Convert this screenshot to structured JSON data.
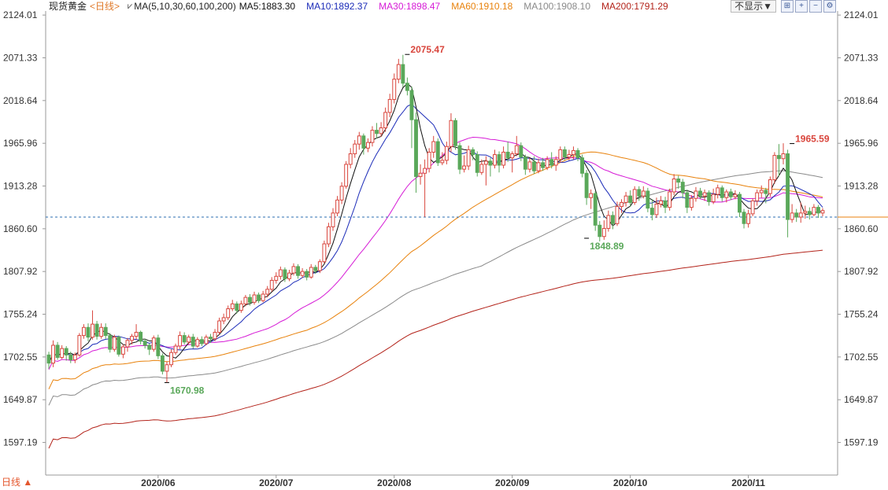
{
  "header": {
    "symbol": "现货黄金",
    "period_label": "<日线>",
    "ma_params": "MA(5,10,30,60,100,200)",
    "ma_values": [
      {
        "text": "MA5:1883.30",
        "color": "#111111"
      },
      {
        "text": "MA10:1892.37",
        "color": "#1b2bb8"
      },
      {
        "text": "MA30:1898.47",
        "color": "#d61bd6"
      },
      {
        "text": "MA60:1910.18",
        "color": "#e8820c"
      },
      {
        "text": "MA100:1908.10",
        "color": "#8a8a8a"
      },
      {
        "text": "MA200:1791.29",
        "color": "#b3231a"
      }
    ],
    "dropdown": "不显示▼",
    "icons": [
      "grid-icon",
      "zoom-in-icon",
      "zoom-out-icon",
      "settings-icon"
    ]
  },
  "footer": {
    "corner_label": "日线 ▲"
  },
  "colors": {
    "up": "#d9463d",
    "down": "#5aa85a",
    "current_line": "#2b6cb0"
  },
  "chart_data": {
    "type": "candlestick",
    "y_ticks": [
      "2124.01",
      "2071.33",
      "2018.64",
      "1965.96",
      "1913.28",
      "1860.60",
      "1807.92",
      "1755.24",
      "1702.55",
      "1649.87",
      "1597.19"
    ],
    "y_tick_values": [
      2124.01,
      2071.33,
      2018.64,
      1965.96,
      1913.28,
      1860.6,
      1807.92,
      1755.24,
      1702.55,
      1649.87,
      1597.19
    ],
    "ylim": [
      1557,
      2129
    ],
    "x_tick_labels": [
      "2020/06",
      "2020/07",
      "2020/08",
      "2020/09",
      "2020/10",
      "2020/11"
    ],
    "x_tick_index": [
      25,
      52,
      79,
      106,
      133,
      160
    ],
    "current_price": 1875,
    "annotations": [
      {
        "text": "2075.47",
        "index": 82,
        "value": 2075.47,
        "color": "#d9463d",
        "side": "above"
      },
      {
        "text": "1670.98",
        "index": 27,
        "value": 1670.98,
        "color": "#5aa85a",
        "side": "below"
      },
      {
        "text": "1848.89",
        "index": 123,
        "value": 1848.89,
        "color": "#5aa85a",
        "side": "below"
      },
      {
        "text": "1965.59",
        "index": 170,
        "value": 1965.59,
        "color": "#d9463d",
        "side": "above"
      }
    ],
    "candles": [
      [
        1705,
        1695,
        1709,
        1688
      ],
      [
        1695,
        1717,
        1723,
        1690
      ],
      [
        1717,
        1702,
        1721,
        1699
      ],
      [
        1702,
        1713,
        1717,
        1700
      ],
      [
        1713,
        1705,
        1716,
        1698
      ],
      [
        1705,
        1699,
        1709,
        1695
      ],
      [
        1699,
        1705,
        1708,
        1695
      ],
      [
        1705,
        1729,
        1732,
        1703
      ],
      [
        1729,
        1739,
        1743,
        1725
      ],
      [
        1739,
        1727,
        1744,
        1722
      ],
      [
        1727,
        1743,
        1760,
        1724
      ],
      [
        1743,
        1728,
        1747,
        1724
      ],
      [
        1728,
        1739,
        1744,
        1725
      ],
      [
        1739,
        1729,
        1744,
        1725
      ],
      [
        1729,
        1712,
        1732,
        1708
      ],
      [
        1712,
        1727,
        1730,
        1709
      ],
      [
        1727,
        1706,
        1729,
        1703
      ],
      [
        1706,
        1715,
        1718,
        1701
      ],
      [
        1715,
        1723,
        1726,
        1709
      ],
      [
        1723,
        1728,
        1731,
        1718
      ],
      [
        1728,
        1733,
        1743,
        1724
      ],
      [
        1733,
        1722,
        1735,
        1718
      ],
      [
        1722,
        1717,
        1725,
        1713
      ],
      [
        1717,
        1712,
        1719,
        1705
      ],
      [
        1712,
        1726,
        1729,
        1709
      ],
      [
        1726,
        1704,
        1730,
        1700
      ],
      [
        1704,
        1685,
        1707,
        1681
      ],
      [
        1685,
        1693,
        1697,
        1671
      ],
      [
        1693,
        1708,
        1712,
        1690
      ],
      [
        1708,
        1716,
        1719,
        1705
      ],
      [
        1716,
        1729,
        1734,
        1712
      ],
      [
        1729,
        1721,
        1733,
        1718
      ],
      [
        1721,
        1727,
        1730,
        1718
      ],
      [
        1727,
        1716,
        1731,
        1713
      ],
      [
        1716,
        1724,
        1727,
        1714
      ],
      [
        1724,
        1719,
        1728,
        1716
      ],
      [
        1719,
        1727,
        1730,
        1717
      ],
      [
        1727,
        1725,
        1731,
        1720
      ],
      [
        1725,
        1733,
        1737,
        1722
      ],
      [
        1733,
        1747,
        1751,
        1730
      ],
      [
        1747,
        1751,
        1756,
        1743
      ],
      [
        1751,
        1762,
        1766,
        1748
      ],
      [
        1762,
        1768,
        1773,
        1759
      ],
      [
        1768,
        1760,
        1771,
        1756
      ],
      [
        1760,
        1768,
        1772,
        1757
      ],
      [
        1768,
        1776,
        1779,
        1765
      ],
      [
        1776,
        1770,
        1780,
        1766
      ],
      [
        1770,
        1779,
        1783,
        1767
      ],
      [
        1779,
        1772,
        1782,
        1769
      ],
      [
        1772,
        1780,
        1784,
        1770
      ],
      [
        1780,
        1786,
        1790,
        1776
      ],
      [
        1786,
        1797,
        1801,
        1783
      ],
      [
        1797,
        1802,
        1807,
        1793
      ],
      [
        1802,
        1810,
        1814,
        1798
      ],
      [
        1810,
        1799,
        1813,
        1795
      ],
      [
        1799,
        1806,
        1810,
        1796
      ],
      [
        1806,
        1814,
        1818,
        1803
      ],
      [
        1814,
        1803,
        1817,
        1799
      ],
      [
        1803,
        1808,
        1812,
        1800
      ],
      [
        1808,
        1801,
        1811,
        1797
      ],
      [
        1801,
        1813,
        1817,
        1799
      ],
      [
        1813,
        1809,
        1816,
        1805
      ],
      [
        1809,
        1820,
        1823,
        1806
      ],
      [
        1820,
        1842,
        1846,
        1818
      ],
      [
        1842,
        1863,
        1868,
        1838
      ],
      [
        1863,
        1880,
        1886,
        1858
      ],
      [
        1880,
        1896,
        1901,
        1876
      ],
      [
        1896,
        1913,
        1918,
        1891
      ],
      [
        1913,
        1940,
        1944,
        1910
      ],
      [
        1940,
        1953,
        1960,
        1935
      ],
      [
        1953,
        1965,
        1970,
        1948
      ],
      [
        1965,
        1975,
        1980,
        1958
      ],
      [
        1975,
        1960,
        1978,
        1952
      ],
      [
        1960,
        1967,
        1972,
        1955
      ],
      [
        1967,
        1982,
        1987,
        1962
      ],
      [
        1982,
        1978,
        1991,
        1972
      ],
      [
        1978,
        1985,
        1992,
        1974
      ],
      [
        1985,
        2004,
        2010,
        1980
      ],
      [
        2004,
        2020,
        2027,
        1998
      ],
      [
        2020,
        2045,
        2052,
        2015
      ],
      [
        2045,
        2063,
        2070,
        2040
      ],
      [
        2063,
        2040,
        2075,
        2035
      ],
      [
        2040,
        2031,
        2047,
        2025
      ],
      [
        2031,
        1995,
        2036,
        1960
      ],
      [
        1995,
        1925,
        2004,
        1905
      ],
      [
        1925,
        1929,
        1940,
        1915
      ],
      [
        1929,
        1935,
        1946,
        1875
      ],
      [
        1935,
        1955,
        1960,
        1930
      ],
      [
        1955,
        1968,
        1975,
        1948
      ],
      [
        1968,
        1942,
        1972,
        1938
      ],
      [
        1942,
        1945,
        1955,
        1939
      ],
      [
        1945,
        1962,
        1968,
        1940
      ],
      [
        1962,
        1994,
        2003,
        1955
      ],
      [
        1994,
        1963,
        1997,
        1958
      ],
      [
        1963,
        1934,
        1967,
        1928
      ],
      [
        1934,
        1938,
        1951,
        1930
      ],
      [
        1938,
        1958,
        1963,
        1933
      ],
      [
        1958,
        1952,
        1961,
        1945
      ],
      [
        1952,
        1930,
        1956,
        1925
      ],
      [
        1930,
        1940,
        1946,
        1927
      ],
      [
        1940,
        1944,
        1950,
        1914
      ],
      [
        1944,
        1939,
        1948,
        1925
      ],
      [
        1939,
        1952,
        1958,
        1935
      ],
      [
        1952,
        1939,
        1956,
        1930
      ],
      [
        1939,
        1955,
        1962,
        1935
      ],
      [
        1955,
        1948,
        1968,
        1943
      ],
      [
        1948,
        1953,
        1956,
        1930
      ],
      [
        1953,
        1963,
        1975,
        1950
      ],
      [
        1963,
        1949,
        1967,
        1944
      ],
      [
        1949,
        1934,
        1952,
        1927
      ],
      [
        1934,
        1943,
        1948,
        1930
      ],
      [
        1943,
        1932,
        1950,
        1928
      ],
      [
        1932,
        1942,
        1947,
        1929
      ],
      [
        1942,
        1936,
        1948,
        1932
      ],
      [
        1936,
        1946,
        1950,
        1933
      ],
      [
        1946,
        1939,
        1955,
        1935
      ],
      [
        1939,
        1946,
        1950,
        1932
      ],
      [
        1946,
        1958,
        1962,
        1942
      ],
      [
        1958,
        1949,
        1962,
        1945
      ],
      [
        1949,
        1952,
        1958,
        1945
      ],
      [
        1952,
        1957,
        1962,
        1946
      ],
      [
        1957,
        1948,
        1960,
        1944
      ],
      [
        1948,
        1929,
        1952,
        1924
      ],
      [
        1929,
        1899,
        1933,
        1890
      ],
      [
        1899,
        1904,
        1909,
        1885
      ],
      [
        1904,
        1865,
        1907,
        1858
      ],
      [
        1865,
        1851,
        1870,
        1845
      ],
      [
        1851,
        1861,
        1871,
        1847
      ],
      [
        1861,
        1877,
        1883,
        1857
      ],
      [
        1877,
        1867,
        1882,
        1860
      ],
      [
        1867,
        1888,
        1894,
        1864
      ],
      [
        1888,
        1893,
        1897,
        1880
      ],
      [
        1893,
        1901,
        1906,
        1888
      ],
      [
        1901,
        1893,
        1908,
        1888
      ],
      [
        1893,
        1909,
        1913,
        1890
      ],
      [
        1909,
        1901,
        1913,
        1895
      ],
      [
        1901,
        1907,
        1913,
        1898
      ],
      [
        1907,
        1886,
        1911,
        1881
      ],
      [
        1886,
        1878,
        1897,
        1871
      ],
      [
        1878,
        1891,
        1899,
        1874
      ],
      [
        1891,
        1895,
        1901,
        1887
      ],
      [
        1895,
        1887,
        1900,
        1880
      ],
      [
        1887,
        1906,
        1910,
        1883
      ],
      [
        1906,
        1922,
        1928,
        1902
      ],
      [
        1922,
        1918,
        1926,
        1910
      ],
      [
        1918,
        1905,
        1922,
        1898
      ],
      [
        1905,
        1887,
        1909,
        1880
      ],
      [
        1887,
        1898,
        1902,
        1883
      ],
      [
        1898,
        1907,
        1912,
        1894
      ],
      [
        1907,
        1901,
        1911,
        1897
      ],
      [
        1901,
        1905,
        1909,
        1895
      ],
      [
        1905,
        1894,
        1908,
        1889
      ],
      [
        1894,
        1903,
        1910,
        1891
      ],
      [
        1903,
        1911,
        1915,
        1898
      ],
      [
        1911,
        1899,
        1914,
        1894
      ],
      [
        1899,
        1906,
        1909,
        1893
      ],
      [
        1906,
        1900,
        1910,
        1896
      ],
      [
        1900,
        1903,
        1908,
        1897
      ],
      [
        1903,
        1881,
        1906,
        1875
      ],
      [
        1881,
        1867,
        1885,
        1861
      ],
      [
        1867,
        1879,
        1884,
        1862
      ],
      [
        1879,
        1895,
        1898,
        1876
      ],
      [
        1895,
        1905,
        1909,
        1889
      ],
      [
        1905,
        1908,
        1914,
        1899
      ],
      [
        1908,
        1904,
        1911,
        1892
      ],
      [
        1904,
        1921,
        1925,
        1900
      ],
      [
        1921,
        1951,
        1955,
        1916
      ],
      [
        1951,
        1947,
        1965,
        1925
      ],
      [
        1947,
        1953,
        1966,
        1940
      ],
      [
        1953,
        1872,
        1958,
        1850
      ],
      [
        1872,
        1880,
        1891,
        1868
      ],
      [
        1880,
        1875,
        1885,
        1869
      ],
      [
        1875,
        1880,
        1893,
        1868
      ],
      [
        1880,
        1882,
        1889,
        1873
      ],
      [
        1882,
        1878,
        1887,
        1872
      ],
      [
        1878,
        1887,
        1891,
        1876
      ],
      [
        1887,
        1880,
        1890,
        1874
      ],
      [
        1880,
        1883,
        1886,
        1876
      ]
    ]
  }
}
